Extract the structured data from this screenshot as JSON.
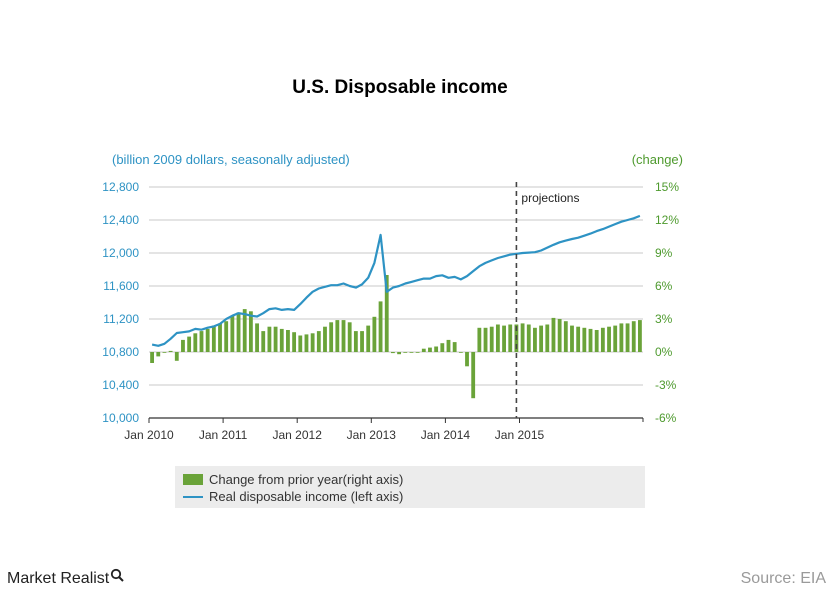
{
  "chart_data": {
    "type": "bar+line",
    "title": "U.S. Disposable income",
    "left_axis_unit": "(billion 2009 dollars, seasonally adjusted)",
    "right_axis_unit": "(change)",
    "left_ylim": [
      10000,
      12800
    ],
    "left_ticks": [
      "12,800",
      "12,400",
      "12,000",
      "11,600",
      "11,200",
      "10,800",
      "10,400",
      "10,000"
    ],
    "right_ylim": [
      -6,
      15
    ],
    "right_ticks": [
      "15%",
      "12%",
      "9%",
      "6%",
      "3%",
      "0%",
      "-3%",
      "-6%"
    ],
    "x_labels": [
      "Jan 2010",
      "Jan 2011",
      "Jan 2012",
      "Jan 2013",
      "Jan 2014",
      "Jan 2015"
    ],
    "x_start": "2010-01",
    "projection_start": "2014-12",
    "projection_label": "projections",
    "grid": true,
    "series": [
      {
        "name": "Change from prior year(right axis)",
        "type": "bar",
        "axis": "right",
        "color": "#6aa339",
        "values": [
          -1.0,
          -0.4,
          0.0,
          0.1,
          -0.8,
          1.1,
          1.4,
          1.7,
          1.9,
          2.1,
          2.4,
          2.6,
          2.8,
          3.3,
          3.6,
          3.9,
          3.7,
          2.6,
          1.9,
          2.3,
          2.3,
          2.1,
          2.0,
          1.8,
          1.5,
          1.6,
          1.7,
          1.9,
          2.3,
          2.7,
          2.9,
          2.9,
          2.7,
          1.9,
          1.9,
          2.4,
          3.2,
          4.6,
          7.0,
          -0.1,
          -0.2,
          0.0,
          0.0,
          0.0,
          0.3,
          0.4,
          0.5,
          0.8,
          1.1,
          0.9,
          0.0,
          -1.3,
          -4.2,
          2.2,
          2.2,
          2.3,
          2.5,
          2.4,
          2.5,
          2.5,
          2.6,
          2.5,
          2.2,
          2.4,
          2.5,
          3.1,
          3.0,
          2.8,
          2.4,
          2.3,
          2.2,
          2.1,
          2.0,
          2.2,
          2.3,
          2.4,
          2.6,
          2.6,
          2.8,
          2.9
        ]
      },
      {
        "name": "Real disposable income (left axis)",
        "type": "line",
        "axis": "left",
        "color": "#2e93c4",
        "values": [
          10890,
          10875,
          10900,
          10960,
          11030,
          11040,
          11050,
          11080,
          11070,
          11095,
          11110,
          11140,
          11200,
          11240,
          11270,
          11260,
          11240,
          11230,
          11270,
          11320,
          11330,
          11310,
          11320,
          11310,
          11380,
          11460,
          11530,
          11570,
          11590,
          11610,
          11610,
          11630,
          11600,
          11580,
          11620,
          11700,
          11880,
          12220,
          11530,
          11580,
          11600,
          11630,
          11650,
          11670,
          11690,
          11690,
          11720,
          11730,
          11700,
          11710,
          11680,
          11720,
          11780,
          11840,
          11880,
          11910,
          11940,
          11960,
          11980,
          11990,
          12000,
          12005,
          12010,
          12030,
          12065,
          12100,
          12130,
          12150,
          12170,
          12185,
          12210,
          12235,
          12265,
          12290,
          12320,
          12350,
          12380,
          12400,
          12420,
          12450
        ]
      }
    ]
  },
  "branding": {
    "logo_text": "Market Realist",
    "source": "Source: EIA"
  }
}
